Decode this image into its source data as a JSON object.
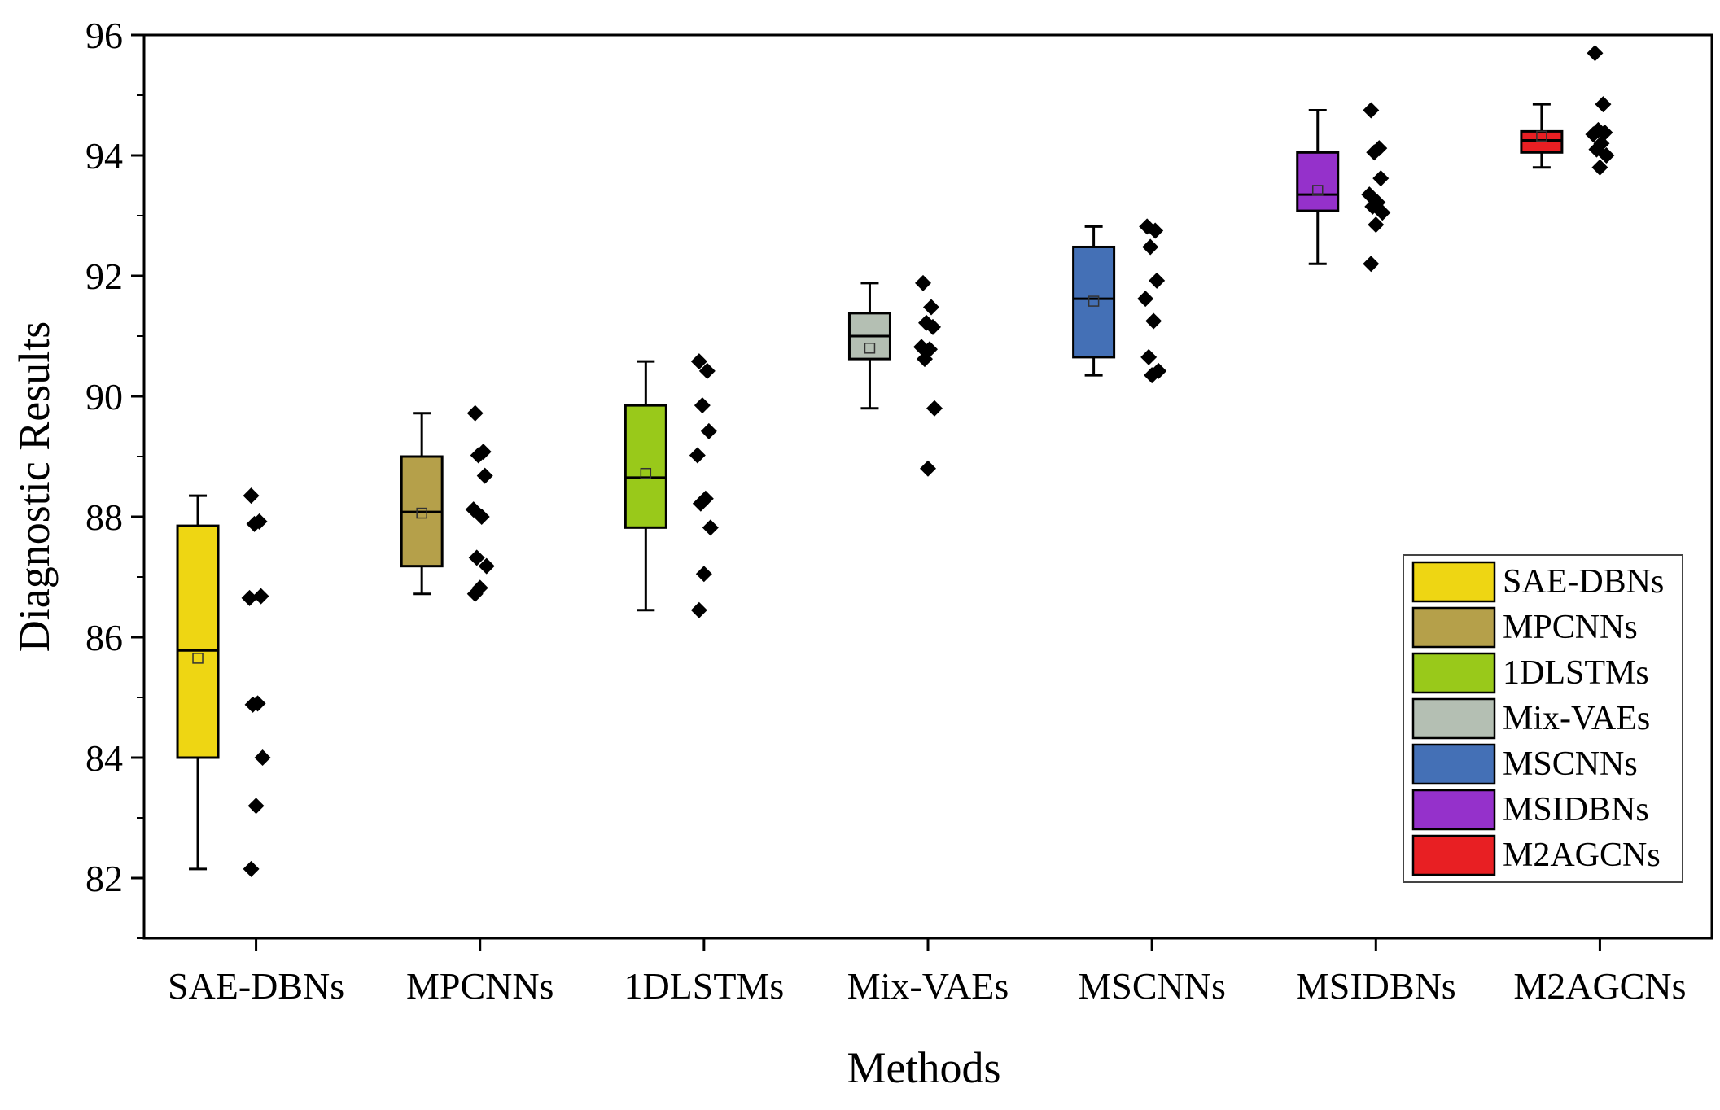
{
  "chart_data": {
    "type": "box",
    "title": "",
    "xlabel": "Methods",
    "ylabel": "Diagnostic Results",
    "ylim": [
      81,
      96
    ],
    "yticks": [
      82,
      84,
      86,
      88,
      90,
      92,
      94,
      96
    ],
    "ytick_labels": [
      "82",
      "84",
      "86",
      "88",
      "90",
      "92",
      "94",
      "96"
    ],
    "grid": false,
    "legend_position": "lower-right",
    "categories": [
      "SAE-DBNs",
      "MPCNNs",
      "1DLSTMs",
      "Mix-VAEs",
      "MSCNNs",
      "MSIDBNs",
      "M2AGCNs"
    ],
    "series": [
      {
        "name": "SAE-DBNs",
        "color": "#eed613",
        "min": 82.15,
        "q1": 84.0,
        "median": 85.78,
        "q3": 87.85,
        "max": 88.35,
        "mean": 85.65,
        "points": [
          88.35,
          87.92,
          87.88,
          86.68,
          86.65,
          84.9,
          84.88,
          84.0,
          83.2,
          82.15
        ]
      },
      {
        "name": "MPCNNs",
        "color": "#b5a04a",
        "min": 86.72,
        "q1": 87.18,
        "median": 88.08,
        "q3": 89.0,
        "max": 89.72,
        "mean": 88.06,
        "points": [
          89.72,
          89.08,
          89.02,
          88.68,
          88.12,
          88.0,
          87.32,
          87.18,
          86.82,
          86.72
        ]
      },
      {
        "name": "1DLSTMs",
        "color": "#99c91a",
        "min": 86.45,
        "q1": 87.82,
        "median": 88.65,
        "q3": 89.85,
        "max": 90.58,
        "mean": 88.72,
        "points": [
          90.58,
          90.42,
          89.85,
          89.42,
          89.02,
          88.3,
          88.22,
          87.82,
          87.05,
          86.45
        ]
      },
      {
        "name": "Mix-VAEs",
        "color": "#b4bfb3",
        "min": 89.8,
        "q1": 90.62,
        "median": 91.0,
        "q3": 91.38,
        "max": 91.88,
        "mean": 90.8,
        "points": [
          91.88,
          91.48,
          91.22,
          91.15,
          90.82,
          90.78,
          90.62,
          89.8,
          88.8
        ]
      },
      {
        "name": "MSCNNs",
        "color": "#4470b6",
        "min": 90.35,
        "q1": 90.65,
        "median": 91.62,
        "q3": 92.48,
        "max": 92.82,
        "mean": 91.58,
        "points": [
          92.82,
          92.75,
          92.48,
          91.92,
          91.62,
          91.25,
          90.65,
          90.42,
          90.35
        ]
      },
      {
        "name": "MSIDBNs",
        "color": "#9531cb",
        "min": 92.2,
        "q1": 93.08,
        "median": 93.35,
        "q3": 94.05,
        "max": 94.75,
        "mean": 93.42,
        "points": [
          94.75,
          94.12,
          94.05,
          93.62,
          93.35,
          93.22,
          93.15,
          93.05,
          92.85,
          92.2
        ]
      },
      {
        "name": "M2AGCNs",
        "color": "#e81f23",
        "min": 93.8,
        "q1": 94.05,
        "median": 94.25,
        "q3": 94.4,
        "max": 94.85,
        "mean": 94.32,
        "points": [
          95.7,
          94.85,
          94.42,
          94.38,
          94.35,
          94.2,
          94.1,
          94.0,
          93.8
        ]
      }
    ]
  }
}
